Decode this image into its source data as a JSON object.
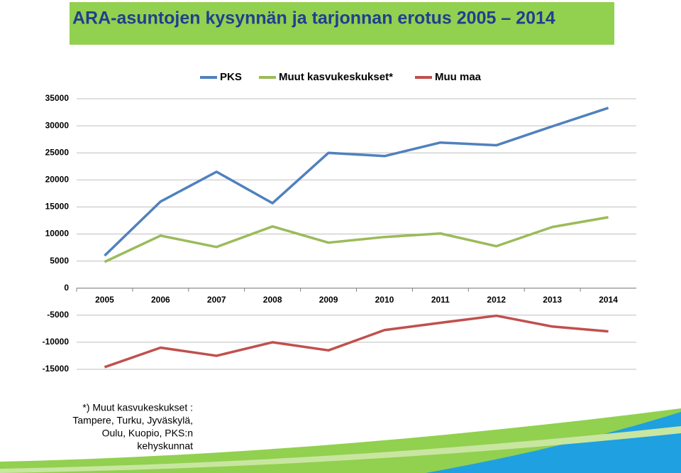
{
  "chart_data": {
    "type": "line",
    "title": "ARA-asuntojen kysynnän ja tarjonnan erotus 2005 – 2014",
    "categories": [
      "2005",
      "2006",
      "2007",
      "2008",
      "2009",
      "2010",
      "2011",
      "2012",
      "2013",
      "2014"
    ],
    "series": [
      {
        "name": "PKS",
        "color": "#4f81bd",
        "values": [
          6000,
          16000,
          21500,
          15700,
          25000,
          24400,
          26900,
          26400,
          29900,
          33300
        ]
      },
      {
        "name": "Muut kasvukeskukset*",
        "color": "#9bbb59",
        "values": [
          4850,
          9700,
          7600,
          11400,
          8400,
          9450,
          10100,
          7750,
          11300,
          13100
        ]
      },
      {
        "name": "Muu maa",
        "color": "#c0504d",
        "values": [
          -14600,
          -11000,
          -12500,
          -10000,
          -11500,
          -7750,
          -6400,
          -5100,
          -7100,
          -8000
        ]
      }
    ],
    "ylim": [
      -15000,
      35000
    ],
    "yticks": [
      -15000,
      -10000,
      -5000,
      0,
      5000,
      10000,
      15000,
      20000,
      25000,
      30000,
      35000
    ],
    "grid": true,
    "legend": "top",
    "footnote": [
      "*) Muut kasvukeskukset :",
      "Tampere, Turku, Jyväskylä,",
      "Oulu, Kuopio, PKS:n",
      "kehyskunnat"
    ]
  }
}
